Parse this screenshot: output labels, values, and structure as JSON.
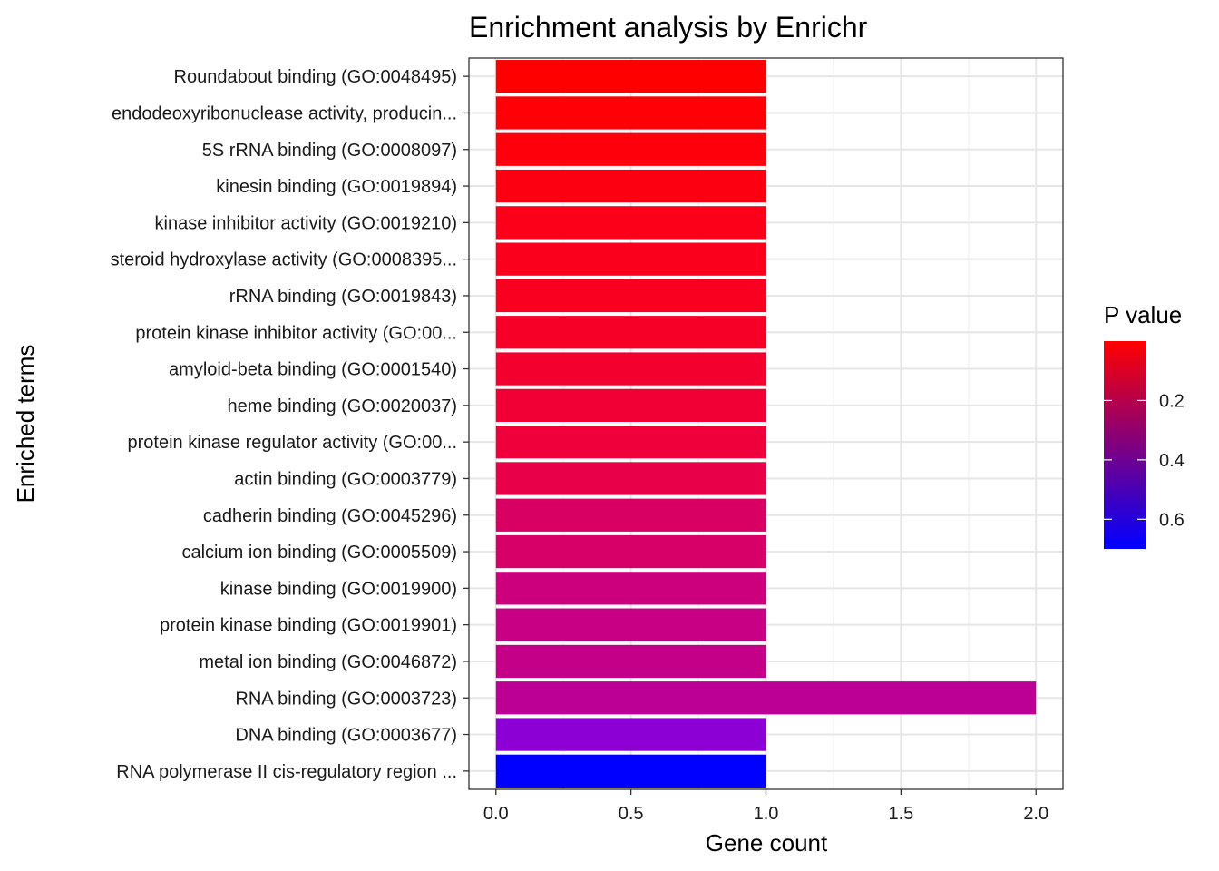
{
  "chart_data": {
    "type": "bar",
    "orientation": "horizontal",
    "title": "Enrichment analysis by Enrichr",
    "xlabel": "Gene count",
    "ylabel": "Enriched terms",
    "xlim": [
      -0.1,
      2.1
    ],
    "xticks": [
      0.0,
      0.5,
      1.0,
      1.5,
      2.0
    ],
    "xtick_labels": [
      "0.0",
      "0.5",
      "1.0",
      "1.5",
      "2.0"
    ],
    "grid": true,
    "categories": [
      "Roundabout binding (GO:0048495)",
      "endodeoxyribonuclease activity, producin...",
      "5S rRNA binding (GO:0008097)",
      "kinesin binding (GO:0019894)",
      "kinase inhibitor activity (GO:0019210)",
      "steroid hydroxylase activity (GO:0008395...",
      "rRNA binding (GO:0019843)",
      "protein kinase inhibitor activity (GO:00...",
      "amyloid-beta binding (GO:0001540)",
      "heme binding (GO:0020037)",
      "protein kinase regulator activity (GO:00...",
      "actin binding (GO:0003779)",
      "cadherin binding (GO:0045296)",
      "calcium ion binding (GO:0005509)",
      "kinase binding (GO:0019900)",
      "protein kinase binding (GO:0019901)",
      "metal ion binding (GO:0046872)",
      "RNA binding (GO:0003723)",
      "DNA binding (GO:0003677)",
      "RNA polymerase II cis-regulatory region ..."
    ],
    "values": [
      1,
      1,
      1,
      1,
      1,
      1,
      1,
      1,
      1,
      1,
      1,
      1,
      1,
      1,
      1,
      1,
      1,
      2,
      1,
      1
    ],
    "p_values": [
      0.01,
      0.02,
      0.03,
      0.05,
      0.06,
      0.07,
      0.08,
      0.09,
      0.11,
      0.13,
      0.14,
      0.17,
      0.23,
      0.24,
      0.28,
      0.3,
      0.32,
      0.33,
      0.48,
      0.7
    ],
    "bar_colors": [
      "#ff0000",
      "#fe0006",
      "#fd000b",
      "#fc0012",
      "#fb0018",
      "#fa001c",
      "#f90021",
      "#f70027",
      "#f4002f",
      "#f10036",
      "#ef003b",
      "#e80049",
      "#d90063",
      "#d70068",
      "#cc007c",
      "#c80083",
      "#c40089",
      "#bd0095",
      "#8c00d6",
      "#0000ff"
    ],
    "legend": {
      "title": "P value",
      "placement": "right",
      "gradient_low": "#ff0000",
      "gradient_high": "#0000ff",
      "range": [
        0.0,
        0.7
      ],
      "ticks": [
        0.2,
        0.4,
        0.6
      ],
      "tick_labels": [
        "0.2",
        "0.4",
        "0.6"
      ]
    }
  }
}
